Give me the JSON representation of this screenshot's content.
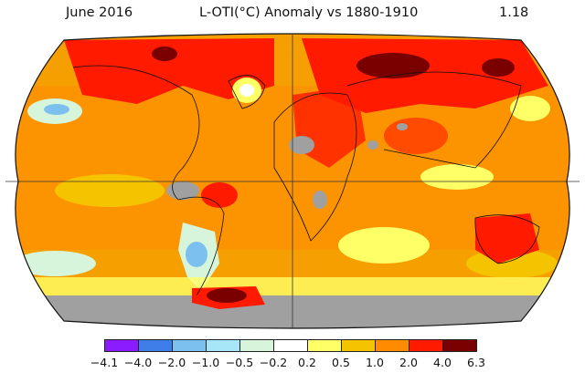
{
  "header": {
    "period": "June 2016",
    "title": "L-OTI(°C) Anomaly vs 1880-1910",
    "global_mean": "1.18"
  },
  "map": {
    "projection": "Robinson",
    "missing_data_color": "#a0a0a0",
    "grid_lines": [
      "equator",
      "prime-meridian"
    ]
  },
  "legend": {
    "ticks": [
      "−4.1",
      "−4.0",
      "−2.0",
      "−1.0",
      "−0.5",
      "−0.2",
      "0.2",
      "0.5",
      "1.0",
      "2.0",
      "4.0",
      "6.3"
    ],
    "colors": [
      "#8a1cff",
      "#3f7de8",
      "#7cc0f0",
      "#a6e6f8",
      "#d6f5da",
      "#ffffff",
      "#ffff66",
      "#f5c400",
      "#ff8c00",
      "#ff1a00",
      "#7a0000"
    ]
  }
}
